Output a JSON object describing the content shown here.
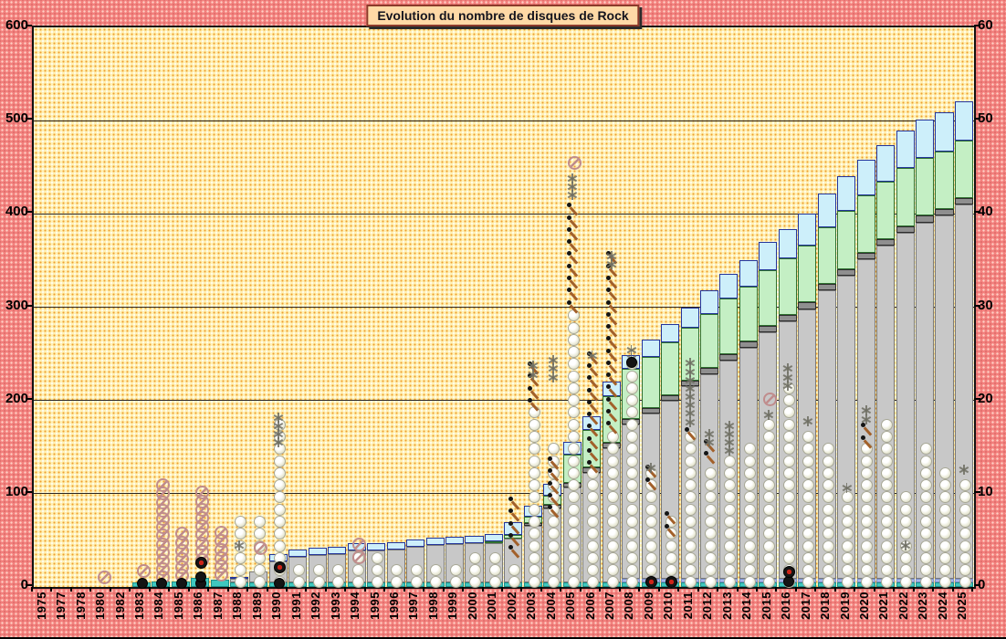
{
  "title": "Evolution du nombre de disques de Rock",
  "icons": {
    "sparkle": "asterisk-6-point"
  },
  "colors": {
    "frame_bg": "#F2807D",
    "plot_bg": "#FFF1B6",
    "grid": "#2A2520",
    "title_bg": "#FFD9A6",
    "title_border": "#8C3A2B",
    "teal": "#3FC8BF",
    "periwinkle": "#A9B8EA",
    "gray": "#C8C8C8",
    "dark_cap": "#8F8F8F",
    "green": "#C4EFC4",
    "sky": "#CDEFFA",
    "sky_border": "#24359B",
    "slash_marker": "#C08C8C",
    "dash_marker": "#A2602A",
    "bead": "#ECECDA"
  },
  "chart_data": {
    "type": "bar",
    "stacked": true,
    "title": "Evolution du nombre de disques de Rock",
    "grid": true,
    "legend": "none",
    "left_axis": {
      "min": 0,
      "max": 600,
      "step": 100,
      "ticks": [
        0,
        100,
        200,
        300,
        400,
        500,
        600
      ]
    },
    "right_axis": {
      "min": 0,
      "max": 60,
      "step": 10,
      "ticks": [
        0,
        10,
        20,
        30,
        40,
        50,
        60
      ]
    },
    "categories": [
      1975,
      1977,
      1978,
      1980,
      1982,
      1983,
      1984,
      1985,
      1986,
      1987,
      1988,
      1989,
      1990,
      1991,
      1992,
      1993,
      1994,
      1995,
      1996,
      1997,
      1998,
      1999,
      2000,
      2001,
      2002,
      2003,
      2004,
      2005,
      2006,
      2007,
      2008,
      2009,
      2010,
      2011,
      2012,
      2013,
      2014,
      2015,
      2016,
      2017,
      2018,
      2019,
      2020,
      2021,
      2022,
      2023,
      2024,
      2025
    ],
    "series": [
      {
        "name": "teal-base",
        "color": "#3FC8BF",
        "border": "#1F8F88",
        "values": [
          0,
          0,
          0,
          0,
          0,
          5,
          6,
          6,
          10,
          8,
          5,
          5,
          5,
          5,
          5,
          5,
          5,
          5,
          5,
          5,
          5,
          5,
          5,
          5,
          5,
          5,
          5,
          5,
          5,
          5,
          5,
          5,
          5,
          5,
          5,
          5,
          5,
          5,
          5,
          5,
          5,
          5,
          5,
          5,
          5,
          5,
          5,
          5
        ]
      },
      {
        "name": "periwinkle-base",
        "color": "#A9B8EA",
        "border": "#7E90C9",
        "values": [
          0,
          0,
          0,
          0,
          0,
          0,
          0,
          0,
          0,
          0,
          0,
          0,
          0,
          0,
          0,
          0,
          0,
          0,
          0,
          0,
          0,
          0,
          0,
          0,
          0,
          0,
          0,
          0,
          0,
          0,
          4,
          4,
          4,
          4,
          4,
          4,
          4,
          4,
          4,
          4,
          4,
          4,
          4,
          4,
          4,
          4,
          4,
          4
        ]
      },
      {
        "name": "gray-main",
        "color": "#C8C8C8",
        "border": "#7A7A7A",
        "values": [
          0,
          0,
          0,
          0,
          0,
          0,
          0,
          0,
          0,
          0,
          4,
          12,
          22,
          27,
          29,
          30,
          34,
          34,
          35,
          38,
          40,
          41,
          42,
          42,
          47,
          61,
          79,
          102,
          117,
          144,
          165,
          177,
          191,
          206,
          219,
          234,
          247,
          264,
          276,
          289,
          309,
          325,
          342,
          357,
          371,
          382,
          389,
          401
        ]
      },
      {
        "name": "dark-gray-cap",
        "color": "#8F8F8F",
        "border": "#2D2D2D",
        "values": [
          0,
          0,
          0,
          0,
          0,
          0,
          0,
          0,
          0,
          0,
          0,
          0,
          0,
          0,
          0,
          0,
          0,
          0,
          0,
          0,
          0,
          0,
          0,
          0,
          0,
          3,
          4,
          5,
          6,
          6,
          6,
          6,
          6,
          6,
          7,
          7,
          7,
          7,
          7,
          7,
          7,
          7,
          7,
          7,
          7,
          7,
          7,
          7
        ]
      },
      {
        "name": "light-green",
        "color": "#C4EFC4",
        "border": "#2F7030",
        "values": [
          0,
          0,
          0,
          0,
          0,
          0,
          0,
          0,
          0,
          0,
          0,
          0,
          0,
          0,
          0,
          0,
          0,
          0,
          0,
          0,
          0,
          0,
          0,
          2,
          4,
          6,
          10,
          30,
          40,
          50,
          54,
          55,
          56,
          57,
          58,
          59,
          59,
          60,
          60,
          61,
          61,
          62,
          62,
          62,
          62,
          62,
          62,
          62
        ]
      },
      {
        "name": "sky-blue-top",
        "color": "#CDEFFA",
        "border": "#24359B",
        "values": [
          0,
          0,
          0,
          0,
          0,
          0,
          0,
          0,
          0,
          0,
          2,
          0,
          8,
          8,
          8,
          8,
          8,
          8,
          8,
          8,
          8,
          8,
          8,
          8,
          14,
          12,
          13,
          14,
          15,
          15,
          15,
          18,
          20,
          22,
          25,
          27,
          28,
          30,
          32,
          34,
          36,
          37,
          38,
          39,
          40,
          41,
          42,
          42
        ]
      }
    ],
    "markers": {
      "bead_chain_top_by_year": {
        "1988": 81,
        "1989": 79,
        "1990": 182,
        "1991": 28,
        "1992": 28,
        "1993": 25,
        "1994": 40,
        "1995": 40,
        "1996": 28,
        "1997": 28,
        "1998": 25,
        "1999": 28,
        "2000": 40,
        "2001": 40,
        "2002": 28,
        "2003": 190,
        "2004": 155,
        "2005": 296,
        "2006": 125,
        "2007": 167,
        "2008": 240,
        "2009": 133,
        "2010": 74,
        "2011": 161,
        "2012": 128,
        "2013": 140,
        "2014": 153,
        "2015": 180,
        "2016": 213,
        "2017": 167,
        "2018": 154,
        "2019": 100,
        "2020": 150,
        "2021": 182,
        "2022": 100,
        "2023": 153,
        "2024": 122,
        "2025": 120
      },
      "slash_points_by_year": {
        "1980": [
          8
        ],
        "1983": [
          15
        ],
        "1989": [
          40
        ],
        "1994": [
          30,
          44
        ],
        "2005": [
          453
        ],
        "2015": [
          199
        ]
      },
      "slash_chains_by_year": {
        "1984": [
          8,
          108
        ],
        "1985": [
          10,
          58
        ],
        "1986": [
          27,
          99
        ],
        "1987": [
          11,
          63
        ]
      },
      "black_dots_by_year": {
        "1983": [
          3
        ],
        "1984": [
          3
        ],
        "1985": [
          3
        ],
        "1986": [
          3,
          10
        ],
        "1990": [
          3
        ],
        "2008": [
          240
        ],
        "2016": [
          5
        ]
      },
      "red_dots_by_year": {
        "1986": [
          25
        ],
        "1990": [
          20
        ],
        "2009": [
          4
        ],
        "2010": [
          4
        ],
        "2016": [
          15
        ]
      },
      "dash_chains_by_year": {
        "2002": [
          37,
          89
        ],
        "2003": [
          195,
          245
        ],
        "2004": [
          80,
          135
        ],
        "2005": [
          300,
          412
        ],
        "2006": [
          128,
          246
        ],
        "2007": [
          170,
          355
        ],
        "2009": [
          110,
          130
        ],
        "2010": [
          60,
          75
        ],
        "2011": [
          163,
          172
        ],
        "2012": [
          138,
          151
        ],
        "2020": [
          155,
          170
        ]
      },
      "sparkle_chains_by_year": {
        "1988": [
          45,
          46
        ],
        "1990": [
          155,
          182
        ],
        "2003": [
          228,
          245
        ],
        "2004": [
          225,
          250
        ],
        "2005": [
          420,
          445
        ],
        "2006": [
          248,
          252
        ],
        "2007": [
          346,
          363
        ],
        "2008": [
          245,
          262
        ],
        "2009": [
          128,
          132
        ],
        "2011": [
          177,
          244
        ],
        "2012": [
          155,
          172
        ],
        "2013": [
          146,
          175
        ],
        "2015": [
          185,
          189
        ],
        "2016": [
          216,
          236
        ],
        "2017": [
          178,
          182
        ],
        "2019": [
          106,
          110
        ],
        "2020": [
          180,
          192
        ],
        "2022": [
          45,
          49
        ],
        "2025": [
          126,
          130
        ]
      }
    }
  }
}
